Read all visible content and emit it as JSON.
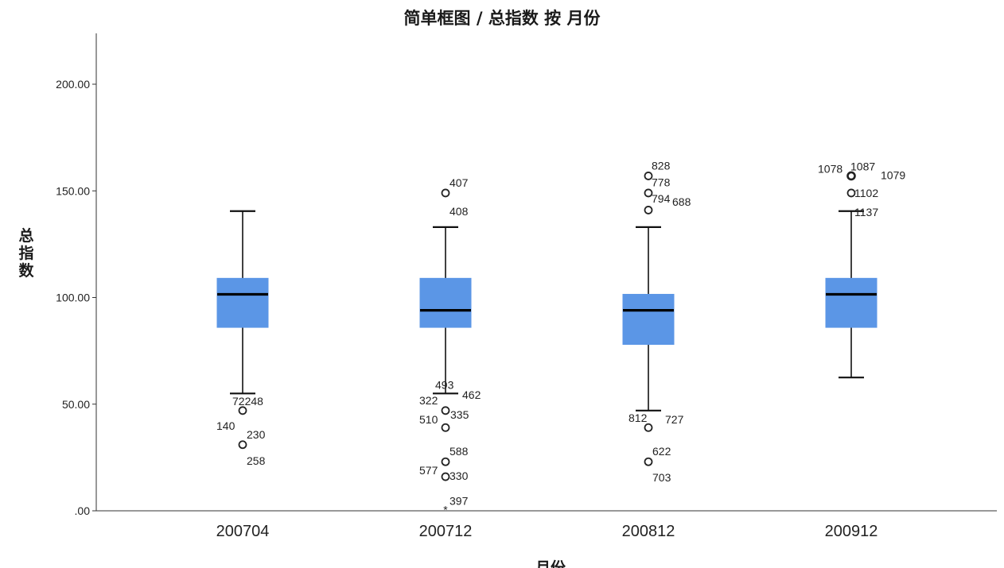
{
  "chart_data": {
    "type": "boxplot",
    "title": "简单框图 / 总指数 按 月份",
    "xlabel": "月份",
    "ylabel": "总指数",
    "ylim": [
      0,
      220
    ],
    "yticks": [
      0,
      50,
      100,
      150,
      200
    ],
    "ytick_labels": [
      ".00",
      "50.00",
      "100.00",
      "150.00",
      "200.00"
    ],
    "categories": [
      "200704",
      "200712",
      "200812",
      "200912"
    ],
    "box_color": "#5b96e6",
    "boxes": [
      {
        "category": "200704",
        "q1": 86,
        "median": 101.5,
        "q3": 109,
        "whisker_low": 55,
        "whisker_high": 140.5,
        "outliers": [
          {
            "value": 47,
            "marker": "circle",
            "labels": [
              {
                "text": "72248",
                "dx": -13,
                "dy": -12
              },
              {
                "text": "140",
                "dx": -33,
                "dy": 19
              }
            ]
          },
          {
            "value": 31,
            "marker": "circle",
            "labels": [
              {
                "text": "230",
                "dx": 5,
                "dy": -13
              },
              {
                "text": "258",
                "dx": 5,
                "dy": 20
              }
            ]
          }
        ]
      },
      {
        "category": "200712",
        "q1": 86,
        "median": 94,
        "q3": 109,
        "whisker_low": 55,
        "whisker_high": 133,
        "outliers": [
          {
            "value": 149,
            "marker": "circle",
            "labels": [
              {
                "text": "407",
                "dx": 5,
                "dy": -13
              }
            ]
          },
          {
            "value": 140.5,
            "marker": "none",
            "labels": [
              {
                "text": "408",
                "dx": 5,
                "dy": 0
              }
            ]
          },
          {
            "value": 59,
            "marker": "none",
            "labels": [
              {
                "text": "493",
                "dx": -13,
                "dy": 0
              }
            ]
          },
          {
            "value": 54,
            "marker": "none",
            "labels": [
              {
                "text": "462",
                "dx": 21,
                "dy": -1
              },
              {
                "text": "322",
                "dx": -33,
                "dy": 6
              }
            ]
          },
          {
            "value": 47,
            "marker": "circle",
            "labels": [
              {
                "text": "335",
                "dx": 6,
                "dy": 5
              },
              {
                "text": "510",
                "dx": -33,
                "dy": 11
              }
            ]
          },
          {
            "value": 39,
            "marker": "circle",
            "labels": []
          },
          {
            "value": 23,
            "marker": "circle",
            "labels": [
              {
                "text": "588",
                "dx": 5,
                "dy": -13
              },
              {
                "text": "577",
                "dx": -33,
                "dy": 11
              }
            ]
          },
          {
            "value": 16,
            "marker": "circle",
            "labels": [
              {
                "text": "330",
                "dx": 5,
                "dy": -1
              }
            ]
          },
          {
            "value": 0.5,
            "marker": "star",
            "labels": [
              {
                "text": "397",
                "dx": 5,
                "dy": -11
              }
            ]
          }
        ]
      },
      {
        "category": "200812",
        "q1": 78,
        "median": 94,
        "q3": 101.5,
        "whisker_low": 47,
        "whisker_high": 133,
        "outliers": [
          {
            "value": 157,
            "marker": "circle",
            "labels": [
              {
                "text": "828",
                "dx": 4,
                "dy": -13
              },
              {
                "text": "778",
                "dx": 4,
                "dy": 8
              }
            ]
          },
          {
            "value": 149,
            "marker": "circle",
            "labels": [
              {
                "text": "794",
                "dx": 4,
                "dy": 7
              },
              {
                "text": "688",
                "dx": 30,
                "dy": 11
              }
            ]
          },
          {
            "value": 141,
            "marker": "circle",
            "labels": []
          },
          {
            "value": 47,
            "marker": "none",
            "labels": [
              {
                "text": "812",
                "dx": -25,
                "dy": 9
              },
              {
                "text": "727",
                "dx": 21,
                "dy": 11
              }
            ]
          },
          {
            "value": 39,
            "marker": "circle",
            "labels": []
          },
          {
            "value": 23,
            "marker": "circle",
            "labels": [
              {
                "text": "622",
                "dx": 5,
                "dy": -13
              },
              {
                "text": "703",
                "dx": 5,
                "dy": 20
              }
            ]
          }
        ]
      },
      {
        "category": "200912",
        "q1": 86,
        "median": 101.5,
        "q3": 109,
        "whisker_low": 62.5,
        "whisker_high": 140.5,
        "outliers": [
          {
            "value": 157,
            "marker": "circle-bold",
            "labels": [
              {
                "text": "1078",
                "dx": -42,
                "dy": -9
              },
              {
                "text": "1087",
                "dx": -1,
                "dy": -12
              },
              {
                "text": "1079",
                "dx": 37,
                "dy": -1
              }
            ]
          },
          {
            "value": 149,
            "marker": "circle",
            "labels": [
              {
                "text": "1102",
                "dx": 4,
                "dy": 0
              }
            ]
          },
          {
            "value": 140.5,
            "marker": "none",
            "labels": [
              {
                "text": "1137",
                "dx": 4,
                "dy": 1
              }
            ]
          }
        ]
      }
    ]
  }
}
